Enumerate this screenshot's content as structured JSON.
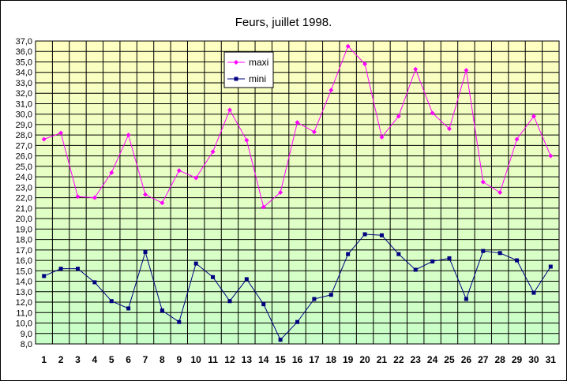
{
  "chart_data": {
    "type": "line",
    "title": "Feurs, juillet 1998.",
    "x": [
      "1",
      "2",
      "3",
      "4",
      "5",
      "6",
      "7",
      "8",
      "9",
      "10",
      "11",
      "12",
      "13",
      "14",
      "15",
      "16",
      "17",
      "18",
      "19",
      "20",
      "21",
      "22",
      "23",
      "24",
      "25",
      "26",
      "27",
      "28",
      "29",
      "30",
      "31"
    ],
    "ylim": [
      8,
      37
    ],
    "ytick_step": 1,
    "ytick_labels": [
      "8,0",
      "9,0",
      "10,0",
      "11,0",
      "12,0",
      "13,0",
      "14,0",
      "15,0",
      "16,0",
      "17,0",
      "18,0",
      "19,0",
      "20,0",
      "21,0",
      "22,0",
      "23,0",
      "24,0",
      "25,0",
      "26,0",
      "27,0",
      "28,0",
      "29,0",
      "30,0",
      "31,0",
      "32,0",
      "33,0",
      "34,0",
      "35,0",
      "36,0",
      "37,0"
    ],
    "grid": true,
    "legend_position": "top-center",
    "series": [
      {
        "name": "maxi",
        "color": "#ff00ff",
        "marker": "diamond",
        "values": [
          27.6,
          28.2,
          22.1,
          22.0,
          24.4,
          28.0,
          22.3,
          21.5,
          24.6,
          23.9,
          26.4,
          30.4,
          27.5,
          21.1,
          22.5,
          29.2,
          28.3,
          32.3,
          36.5,
          34.8,
          27.8,
          29.8,
          34.3,
          30.1,
          28.6,
          34.2,
          23.5,
          22.5,
          27.6,
          29.8,
          26.0
        ]
      },
      {
        "name": "mini",
        "color": "#000080",
        "marker": "square",
        "values": [
          14.5,
          15.2,
          15.2,
          13.9,
          12.1,
          11.4,
          16.8,
          11.2,
          10.1,
          15.7,
          14.4,
          12.1,
          14.2,
          11.8,
          8.4,
          10.1,
          12.3,
          12.7,
          16.6,
          18.5,
          18.4,
          16.6,
          15.1,
          15.9,
          16.2,
          12.3,
          16.9,
          16.7,
          16.0,
          12.9,
          15.4
        ]
      }
    ],
    "background_gradient": [
      "#ffffc0",
      "#c8ffc8"
    ],
    "gridline_color": "#000000"
  }
}
